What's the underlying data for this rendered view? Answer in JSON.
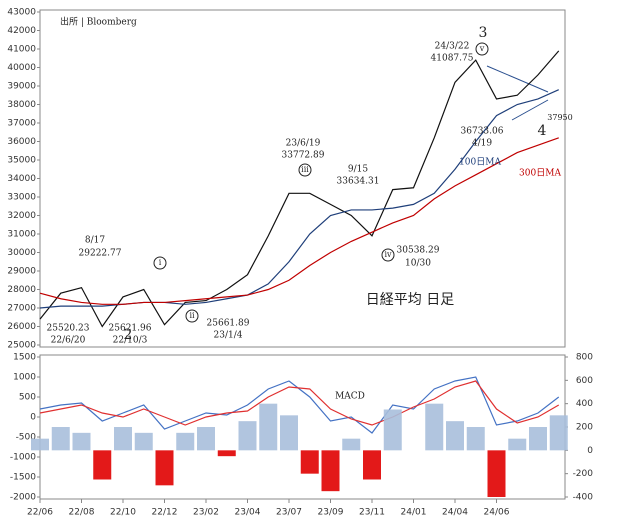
{
  "chart_data": [
    {
      "type": "line",
      "annotations": [
        "出所 | Bloomberg",
        "8/17",
        "29222.77",
        "25520.23",
        "22/6/20",
        "25621.96",
        "22/10/3",
        "25661.89",
        "23/1/4",
        "23/6/19",
        "33772.89",
        "9/15",
        "33634.31",
        "30538.29",
        "10/30",
        "24/3/22",
        "41087.75",
        "36733.06",
        "4/19",
        "37950",
        "日経平均 日足",
        "100日MA",
        "300日MA",
        "3",
        "2",
        "4",
        "i",
        "ii",
        "iii",
        "iv",
        "v"
      ],
      "series": [
        {
          "color": "#111111",
          "values": [
            26400,
            27800,
            28100,
            26000,
            27600,
            28000,
            26100,
            27300,
            27400,
            28000,
            28800,
            30900,
            33200,
            33200,
            32600,
            32000,
            30900,
            33400,
            33500,
            36200,
            39200,
            40400,
            38300,
            38500,
            39600,
            40900
          ]
        },
        {
          "name": "100日MA",
          "color": "#1f3f7a",
          "values": [
            27000,
            27100,
            27100,
            27100,
            27200,
            27300,
            27300,
            27200,
            27300,
            27500,
            27700,
            28300,
            29500,
            31000,
            32000,
            32300,
            32300,
            32400,
            32600,
            33200,
            34500,
            36000,
            37400,
            38000,
            38300,
            38800
          ]
        },
        {
          "name": "300日MA",
          "color": "#c00000",
          "values": [
            27800,
            27500,
            27300,
            27200,
            27200,
            27300,
            27300,
            27400,
            27500,
            27600,
            27700,
            28000,
            28500,
            29300,
            30000,
            30600,
            31100,
            31600,
            32000,
            32900,
            33600,
            34200,
            34800,
            35400,
            35800,
            36200
          ]
        }
      ],
      "ylim": [
        25000,
        43000
      ],
      "yticks": [
        25000,
        26000,
        27000,
        28000,
        29000,
        30000,
        31000,
        32000,
        33000,
        34000,
        35000,
        36000,
        37000,
        38000,
        39000,
        40000,
        41000,
        42000,
        43000
      ]
    },
    {
      "type": "line",
      "title": "MACD",
      "categories": [
        "22/06",
        null,
        "22/08",
        null,
        "22/10",
        null,
        "22/12",
        null,
        "23/02",
        null,
        "23/04",
        null,
        "23/07",
        null,
        "23/09",
        null,
        "23/11",
        null,
        "24/01",
        null,
        "24/04",
        null,
        "24/06",
        null,
        null,
        null
      ],
      "series": [
        {
          "color": "#4472c4",
          "values": [
            200,
            300,
            350,
            -100,
            100,
            300,
            -300,
            -100,
            100,
            50,
            300,
            700,
            900,
            500,
            -100,
            0,
            -400,
            300,
            200,
            700,
            900,
            1000,
            -200,
            -100,
            100,
            500
          ]
        },
        {
          "color": "#e03030",
          "values": [
            100,
            200,
            300,
            100,
            0,
            200,
            0,
            -200,
            0,
            100,
            150,
            500,
            750,
            700,
            200,
            -50,
            -200,
            0,
            250,
            450,
            750,
            900,
            200,
            -150,
            0,
            300
          ]
        },
        {
          "type": "bar",
          "axis": "y2",
          "color": "#a8bfdc",
          "negative_color": "#e00000",
          "values": [
            100,
            200,
            150,
            -250,
            200,
            150,
            -300,
            150,
            200,
            -50,
            250,
            400,
            300,
            -200,
            -350,
            100,
            -250,
            350,
            0,
            400,
            250,
            200,
            -400,
            100,
            200,
            300
          ]
        }
      ],
      "ylim": [
        -2000,
        1500
      ],
      "yticks": [
        -2000,
        -1500,
        -1000,
        -500,
        0,
        500,
        1000,
        1500
      ],
      "y2lim": [
        -400,
        800
      ],
      "y2ticks": [
        -400,
        -200,
        0,
        200,
        400,
        600,
        800
      ]
    }
  ]
}
